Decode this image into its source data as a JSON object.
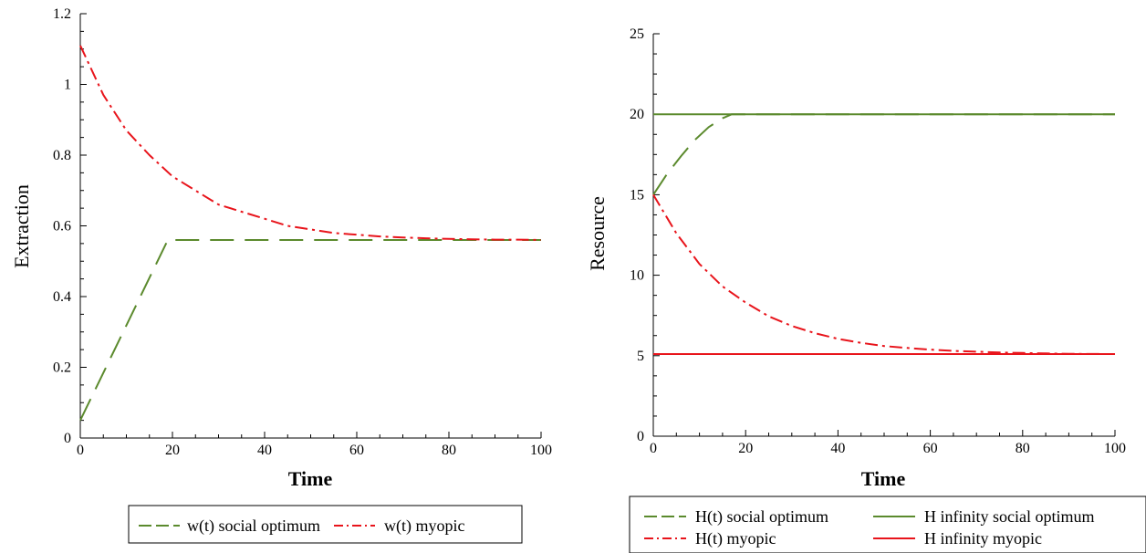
{
  "colors": {
    "green": "#5B8A2D",
    "red": "#E8141B",
    "axis": "#000000"
  },
  "chart_data": [
    {
      "type": "line",
      "xlabel": "Time",
      "ylabel": "Extraction",
      "xlim": [
        0,
        100
      ],
      "ylim": [
        0,
        1.2
      ],
      "xticks": [
        0,
        20,
        40,
        60,
        80,
        100
      ],
      "yticks": [
        0,
        0.2,
        0.4,
        0.6,
        0.8,
        1,
        1.2
      ],
      "xtick_labels": [
        "0",
        "20",
        "40",
        "60",
        "80",
        "100"
      ],
      "ytick_labels": [
        "0",
        "0.2",
        "0.4",
        "0.6",
        "0.8",
        "1",
        "1.2"
      ],
      "legend_position": "bottom",
      "series": [
        {
          "name": "w(t) social optimum",
          "color": "#5B8A2D",
          "style": "long-dash",
          "x": [
            0,
            19,
            30,
            40,
            50,
            60,
            70,
            80,
            90,
            100
          ],
          "y": [
            0.05,
            0.56,
            0.56,
            0.56,
            0.56,
            0.56,
            0.56,
            0.56,
            0.56,
            0.56
          ]
        },
        {
          "name": "w(t) myopic",
          "color": "#E8141B",
          "style": "dash-dot",
          "x": [
            0,
            5,
            10,
            15,
            20,
            25,
            30,
            35,
            40,
            45,
            50,
            55,
            60,
            65,
            70,
            75,
            80,
            85,
            90,
            95,
            100
          ],
          "y": [
            1.11,
            0.97,
            0.87,
            0.8,
            0.74,
            0.7,
            0.66,
            0.64,
            0.62,
            0.6,
            0.59,
            0.58,
            0.575,
            0.57,
            0.567,
            0.565,
            0.563,
            0.562,
            0.561,
            0.561,
            0.56
          ]
        }
      ]
    },
    {
      "type": "line",
      "xlabel": "Time",
      "ylabel": "Resource",
      "xlim": [
        0,
        100
      ],
      "ylim": [
        0,
        25
      ],
      "xticks": [
        0,
        20,
        40,
        60,
        80,
        100
      ],
      "yticks": [
        0,
        5,
        10,
        15,
        20,
        25
      ],
      "xtick_labels": [
        "0",
        "20",
        "40",
        "60",
        "80",
        "100"
      ],
      "ytick_labels": [
        "0",
        "5",
        "10",
        "15",
        "20",
        "25"
      ],
      "legend_position": "bottom",
      "series": [
        {
          "name": "H(t) social optimum",
          "color": "#5B8A2D",
          "style": "long-dash",
          "x": [
            0,
            3,
            6,
            9,
            12,
            15,
            17,
            20,
            30,
            40,
            50,
            60,
            70,
            80,
            90,
            100
          ],
          "y": [
            15,
            16.3,
            17.4,
            18.4,
            19.2,
            19.75,
            20,
            20,
            20,
            20,
            20,
            20,
            20,
            20,
            20,
            20
          ]
        },
        {
          "name": "H infinity social optimum",
          "color": "#5B8A2D",
          "style": "solid",
          "x": [
            0,
            100
          ],
          "y": [
            20,
            20
          ]
        },
        {
          "name": "H(t) myopic",
          "color": "#E8141B",
          "style": "dash-dot",
          "x": [
            0,
            5,
            10,
            15,
            20,
            25,
            30,
            35,
            40,
            45,
            50,
            55,
            60,
            65,
            70,
            75,
            80,
            85,
            90,
            95,
            100
          ],
          "y": [
            15,
            12.6,
            10.7,
            9.3,
            8.3,
            7.45,
            6.85,
            6.4,
            6.05,
            5.8,
            5.6,
            5.48,
            5.38,
            5.3,
            5.25,
            5.2,
            5.17,
            5.14,
            5.12,
            5.11,
            5.1
          ]
        },
        {
          "name": "H infinity myopic",
          "color": "#E8141B",
          "style": "solid",
          "x": [
            0,
            100
          ],
          "y": [
            5.1,
            5.1
          ]
        }
      ]
    }
  ]
}
